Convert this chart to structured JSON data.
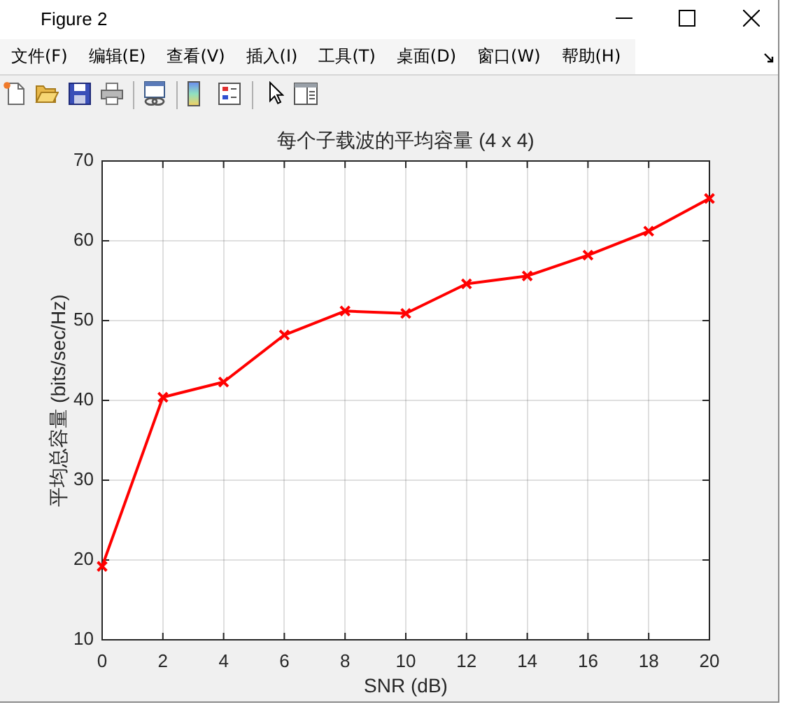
{
  "chart_data": {
    "type": "line",
    "title": "每个子载波的平均容量 (4 x 4)",
    "xlabel": "SNR (dB)",
    "ylabel": "平均总容量 (bits/sec/Hz)",
    "x": [
      0,
      2,
      4,
      6,
      8,
      10,
      12,
      14,
      16,
      18,
      20
    ],
    "series": [
      {
        "color": "#ff0000",
        "values": [
          19.2,
          40.4,
          42.3,
          48.2,
          51.2,
          50.9,
          54.6,
          55.6,
          58.2,
          61.2,
          65.3
        ]
      }
    ],
    "xlim": [
      0,
      20
    ],
    "xticks": [
      0,
      2,
      4,
      6,
      8,
      10,
      12,
      14,
      16,
      18,
      20
    ],
    "ylim": [
      10,
      70
    ],
    "yticks": [
      10,
      20,
      30,
      40,
      50,
      60,
      70
    ],
    "grid": true,
    "marker": "cross",
    "line_style": "solid",
    "annotations": [
      "Figure 2",
      "文件(F)",
      "编辑(E)",
      "查看(V)",
      "插入(I)",
      "工具(T)",
      "桌面(D)",
      "窗口(W)",
      "帮助(H)"
    ]
  }
}
